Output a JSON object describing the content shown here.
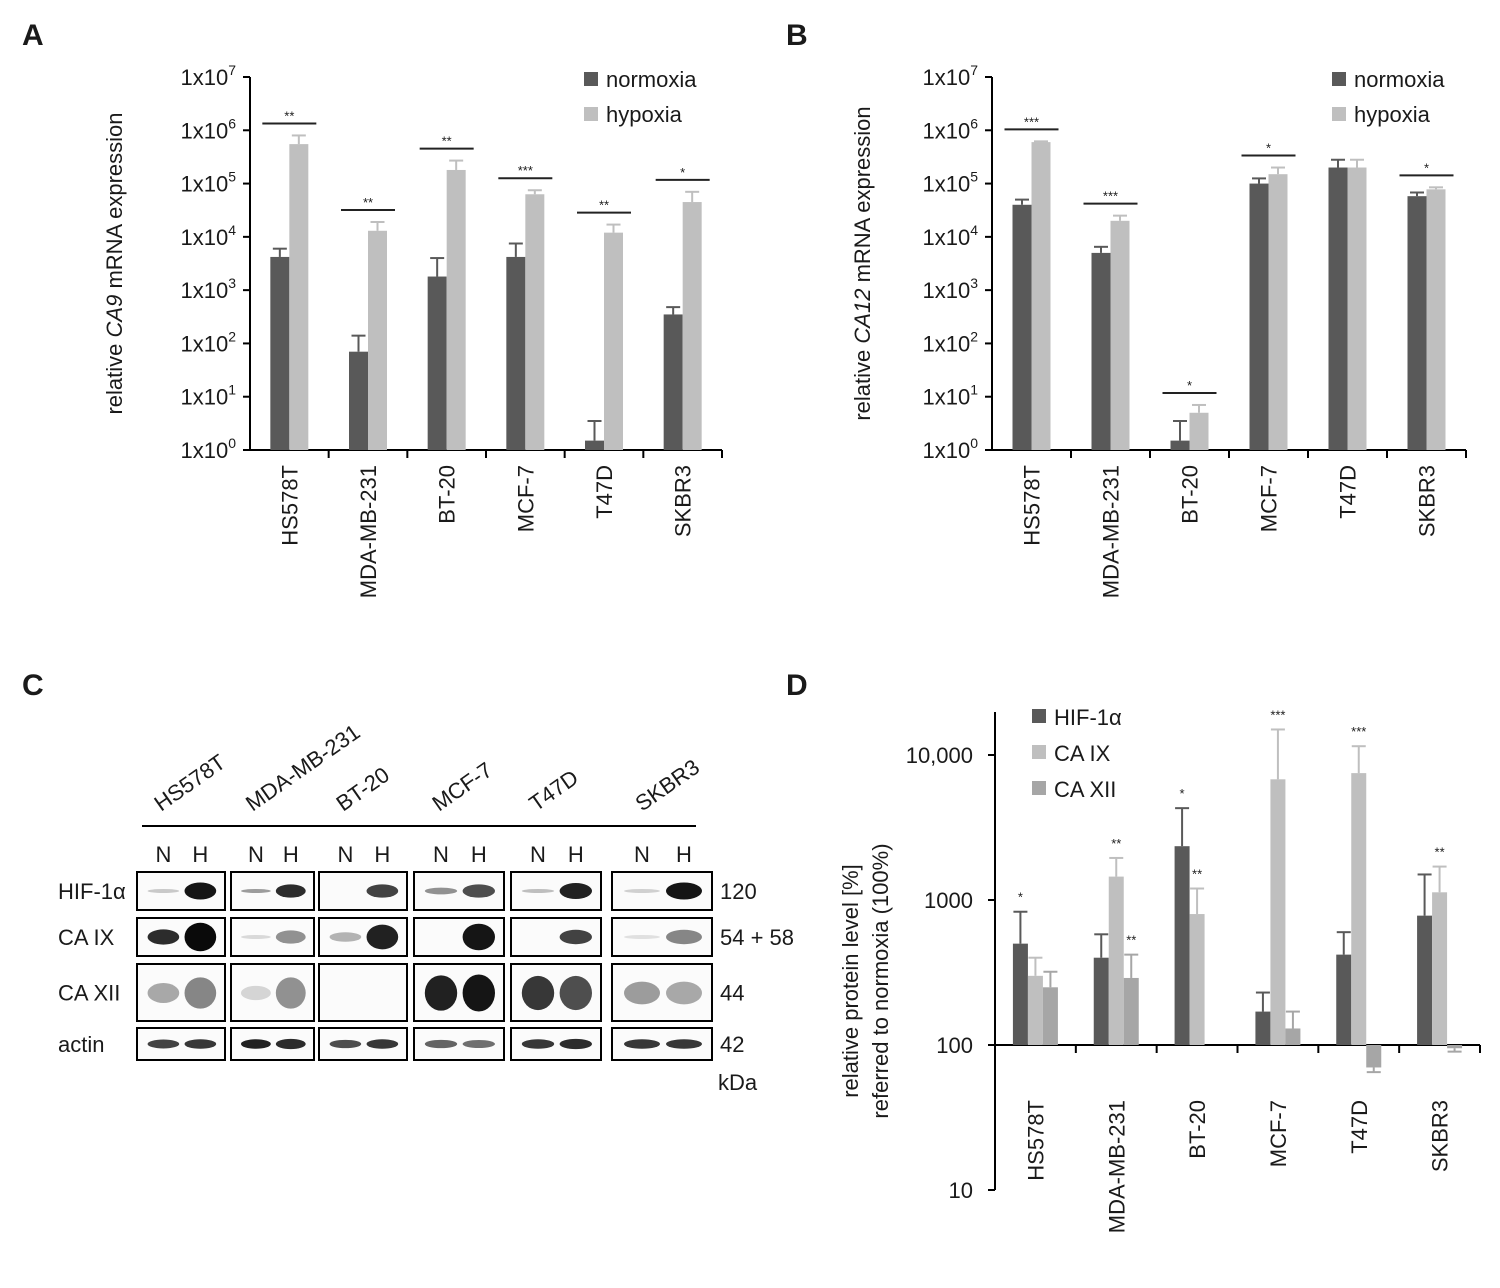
{
  "panel_labels": {
    "a": "A",
    "b": "B",
    "c": "C",
    "d": "D"
  },
  "colors": {
    "dark": "#595959",
    "light": "#bfbfbf",
    "mid": "#a6a6a6",
    "axis": "#000000"
  },
  "chart_data": [
    {
      "id": "A",
      "type": "bar",
      "yscale": "log",
      "ylim": [
        1,
        10000000
      ],
      "yticks": [
        {
          "value": 1,
          "base": "1x10",
          "exp": "0"
        },
        {
          "value": 10,
          "base": "1x10",
          "exp": "1"
        },
        {
          "value": 100,
          "base": "1x10",
          "exp": "2"
        },
        {
          "value": 1000,
          "base": "1x10",
          "exp": "3"
        },
        {
          "value": 10000,
          "base": "1x10",
          "exp": "4"
        },
        {
          "value": 100000,
          "base": "1x10",
          "exp": "5"
        },
        {
          "value": 1000000,
          "base": "1x10",
          "exp": "6"
        },
        {
          "value": 10000000,
          "base": "1x10",
          "exp": "7"
        }
      ],
      "ylabel_pre": "relative ",
      "ylabel_gene": "CA9",
      "ylabel_post": " mRNA expression",
      "categories": [
        "HS578T",
        "MDA-MB-231",
        "BT-20",
        "MCF-7",
        "T47D",
        "SKBR3"
      ],
      "series": [
        {
          "name": "normoxia",
          "color": "#595959",
          "values": [
            4200,
            70,
            1800,
            4200,
            1.5,
            350
          ],
          "errors": [
            6000,
            140,
            4000,
            7500,
            3.5,
            480
          ]
        },
        {
          "name": "hypoxia",
          "color": "#bfbfbf",
          "values": [
            550000,
            13000,
            180000,
            63000,
            12000,
            45000
          ],
          "errors": [
            800000,
            19000,
            270000,
            75000,
            17000,
            70000
          ]
        }
      ],
      "significance": [
        "**",
        "**",
        "**",
        "***",
        "**",
        "*"
      ]
    },
    {
      "id": "B",
      "type": "bar",
      "yscale": "log",
      "ylim": [
        1,
        10000000
      ],
      "yticks": [
        {
          "value": 1,
          "base": "1x10",
          "exp": "0"
        },
        {
          "value": 10,
          "base": "1x10",
          "exp": "1"
        },
        {
          "value": 100,
          "base": "1x10",
          "exp": "2"
        },
        {
          "value": 1000,
          "base": "1x10",
          "exp": "3"
        },
        {
          "value": 10000,
          "base": "1x10",
          "exp": "4"
        },
        {
          "value": 100000,
          "base": "1x10",
          "exp": "5"
        },
        {
          "value": 1000000,
          "base": "1x10",
          "exp": "6"
        },
        {
          "value": 10000000,
          "base": "1x10",
          "exp": "7"
        }
      ],
      "ylabel_pre": "relative ",
      "ylabel_gene": "CA12",
      "ylabel_post": " mRNA expression",
      "categories": [
        "HS578T",
        "MDA-MB-231",
        "BT-20",
        "MCF-7",
        "T47D",
        "SKBR3"
      ],
      "series": [
        {
          "name": "normoxia",
          "color": "#595959",
          "values": [
            40000,
            5000,
            1.5,
            100000,
            200000,
            58000
          ],
          "errors": [
            50000,
            6500,
            3.5,
            125000,
            280000,
            68000
          ]
        },
        {
          "name": "hypoxia",
          "color": "#bfbfbf",
          "values": [
            600000,
            20000,
            5,
            150000,
            200000,
            78000
          ],
          "errors": [
            620000,
            25000,
            7,
            200000,
            280000,
            85000
          ]
        }
      ],
      "significance": [
        "***",
        "***",
        "*",
        "*",
        "",
        "*"
      ]
    },
    {
      "id": "D",
      "type": "bar",
      "yscale": "log",
      "ylim": [
        10,
        20000
      ],
      "baseline": 100,
      "yticks": [
        {
          "value": 10,
          "label": "10"
        },
        {
          "value": 100,
          "label": "100"
        },
        {
          "value": 1000,
          "label": "1000"
        },
        {
          "value": 10000,
          "label": "10,000"
        }
      ],
      "ylabel_line1": "relative protein level [%]",
      "ylabel_line2": "referred to normoxia (100%)",
      "categories": [
        "HS578T",
        "MDA-MB-231",
        "BT-20",
        "MCF-7",
        "T47D",
        "SKBR3"
      ],
      "series": [
        {
          "name": "HIF-1α",
          "color": "#595959",
          "values": [
            500,
            400,
            2350,
            170,
            420,
            780
          ],
          "errors": [
            830,
            580,
            4300,
            230,
            600,
            1500
          ]
        },
        {
          "name": "CA IX",
          "color": "#bfbfbf",
          "values": [
            300,
            1450,
            800,
            6800,
            7500,
            1130
          ],
          "errors": [
            400,
            1950,
            1200,
            15000,
            11500,
            1700
          ]
        },
        {
          "name": "CA XII",
          "color": "#a6a6a6",
          "values": [
            250,
            290,
            null,
            130,
            70,
            95
          ],
          "errors": [
            320,
            420,
            null,
            170,
            65,
            90
          ]
        }
      ],
      "significance": [
        [
          "*",
          "",
          ""
        ],
        [
          "",
          "**",
          "**"
        ],
        [
          "*",
          "**",
          ""
        ],
        [
          "",
          "***",
          ""
        ],
        [
          "",
          "***",
          ""
        ],
        [
          "",
          "**",
          ""
        ]
      ]
    }
  ],
  "blot": {
    "cell_lines": [
      "HS578T",
      "MDA-MB-231",
      "BT-20",
      "MCF-7",
      "T47D",
      "SKBR3"
    ],
    "lane_n": "N",
    "lane_h": "H",
    "proteins": [
      {
        "name": "HIF-1α",
        "kda": "120"
      },
      {
        "name": "CA IX",
        "kda": "54 + 58"
      },
      {
        "name": "CA XII",
        "kda": "44"
      },
      {
        "name": "actin",
        "kda": "42"
      }
    ],
    "unit": "kDa"
  }
}
